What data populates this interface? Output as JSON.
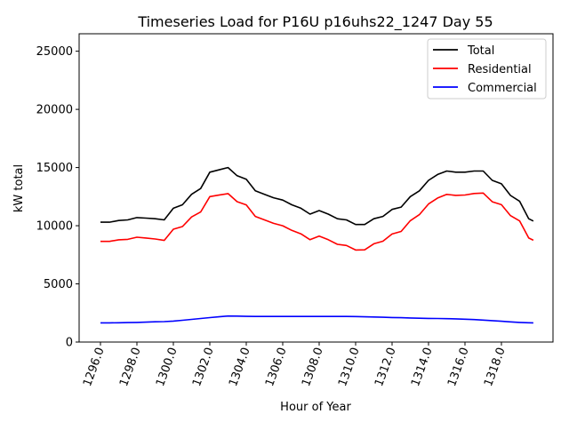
{
  "chart_data": {
    "type": "line",
    "title": "Timeseries Load for P16U p16uhs22_1247  Day 55",
    "xlabel": "Hour of Year",
    "ylabel": "kW total",
    "xlim": [
      1294.83,
      1320.83
    ],
    "ylim": [
      0,
      26500
    ],
    "xticks": [
      1296,
      1298,
      1300,
      1302,
      1304,
      1306,
      1308,
      1310,
      1312,
      1314,
      1316,
      1318
    ],
    "xtick_labels": [
      "1296.0",
      "1298.0",
      "1300.0",
      "1302.0",
      "1304.0",
      "1306.0",
      "1308.0",
      "1310.0",
      "1312.0",
      "1314.0",
      "1316.0",
      "1318.0"
    ],
    "yticks": [
      0,
      5000,
      10000,
      15000,
      20000,
      25000
    ],
    "ytick_labels": [
      "0",
      "5000",
      "10000",
      "15000",
      "20000",
      "25000"
    ],
    "grid": false,
    "legend_position": "top-right",
    "x": [
      1296,
      1296.5,
      1297,
      1297.5,
      1298,
      1298.5,
      1299,
      1299.5,
      1300,
      1300.5,
      1301,
      1301.5,
      1302,
      1302.5,
      1303,
      1303.5,
      1304,
      1304.5,
      1305,
      1305.5,
      1306,
      1306.5,
      1307,
      1307.5,
      1308,
      1308.5,
      1309,
      1309.5,
      1310,
      1310.5,
      1311,
      1311.5,
      1312,
      1312.5,
      1313,
      1313.5,
      1314,
      1314.5,
      1315,
      1315.5,
      1316,
      1316.5,
      1317,
      1317.5,
      1318,
      1318.5,
      1319,
      1319.5,
      1319.75
    ],
    "series": [
      {
        "name": "Total",
        "color": "#000000",
        "values": [
          10300,
          10300,
          10450,
          10500,
          10700,
          10650,
          10600,
          10500,
          11500,
          11800,
          12700,
          13200,
          14600,
          14800,
          15000,
          14300,
          14000,
          13000,
          12700,
          12400,
          12200,
          11800,
          11500,
          11000,
          11300,
          11000,
          10600,
          10500,
          10100,
          10100,
          10600,
          10800,
          11400,
          11600,
          12500,
          13000,
          13900,
          14400,
          14700,
          14600,
          14600,
          14700,
          14700,
          13900,
          13600,
          12600,
          12100,
          10600,
          10400
        ]
      },
      {
        "name": "Residential",
        "color": "#ff0000",
        "values": [
          8650,
          8650,
          8790,
          8830,
          9010,
          8940,
          8860,
          8740,
          9700,
          9930,
          10750,
          11180,
          12500,
          12630,
          12760,
          12070,
          11790,
          10800,
          10500,
          10200,
          10000,
          9600,
          9300,
          8800,
          9100,
          8800,
          8400,
          8300,
          7910,
          7930,
          8450,
          8670,
          9290,
          9510,
          10430,
          10950,
          11870,
          12380,
          12690,
          12610,
          12640,
          12770,
          12810,
          12060,
          11810,
          10870,
          10410,
          8940,
          8750
        ]
      },
      {
        "name": "Commercial",
        "color": "#0000ff",
        "values": [
          1650,
          1650,
          1660,
          1670,
          1690,
          1710,
          1740,
          1760,
          1800,
          1870,
          1950,
          2020,
          2100,
          2170,
          2240,
          2230,
          2210,
          2200,
          2200,
          2200,
          2200,
          2200,
          2200,
          2200,
          2200,
          2200,
          2200,
          2200,
          2190,
          2170,
          2150,
          2130,
          2110,
          2090,
          2070,
          2050,
          2030,
          2020,
          2010,
          1990,
          1960,
          1930,
          1890,
          1840,
          1790,
          1730,
          1690,
          1660,
          1650
        ]
      }
    ]
  }
}
